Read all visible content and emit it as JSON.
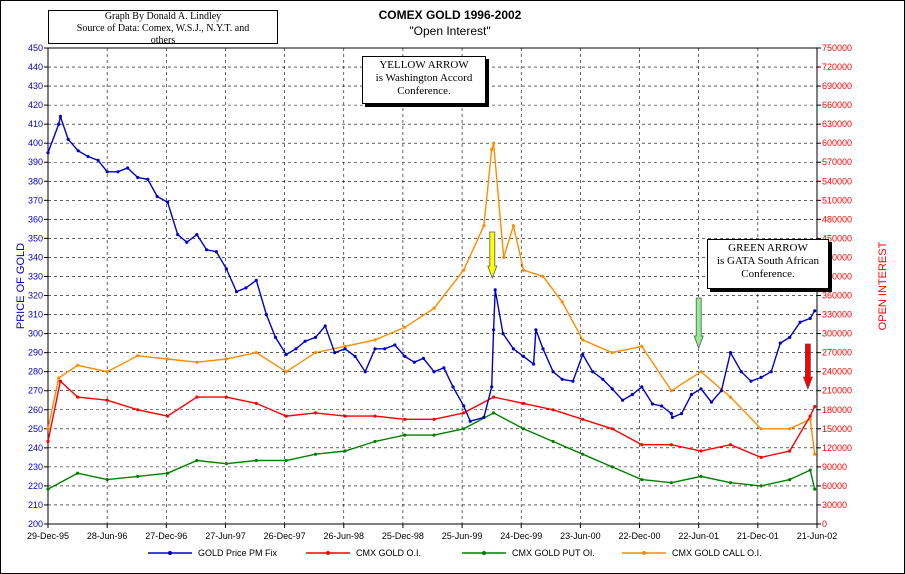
{
  "credit": {
    "line1": "Graph By Donald A. Lindley",
    "line2": "Source of Data: Comex, W.S.J., N.Y.T. and",
    "line3": "others"
  },
  "notes": {
    "yellow": {
      "line1": "YELLOW ARROW",
      "line2": "is Washington Accord",
      "line3": "Conference."
    },
    "green": {
      "line1": "GREEN ARROW",
      "line2": "is GATA South African",
      "line3": "Conference."
    }
  },
  "chart_data": {
    "type": "line",
    "title": "COMEX GOLD 1996-2002",
    "subtitle": "\"Open Interest\"",
    "ylabel_left": "PRICE OF GOLD",
    "ylabel_right": "OPEN INTEREST",
    "ylim_left": [
      200,
      450
    ],
    "ylim_right": [
      0,
      750000
    ],
    "yticks_left": [
      "200",
      "210",
      "220",
      "230",
      "240",
      "250",
      "260",
      "270",
      "280",
      "290",
      "300",
      "310",
      "320",
      "330",
      "340",
      "350",
      "360",
      "370",
      "380",
      "390",
      "400",
      "410",
      "420",
      "430",
      "440",
      "450"
    ],
    "yticks_right": [
      "0",
      "30000",
      "60000",
      "90000",
      "120000",
      "150000",
      "180000",
      "210000",
      "240000",
      "270000",
      "300000",
      "330000",
      "360000",
      "390000",
      "420000",
      "450000",
      "480000",
      "510000",
      "540000",
      "570000",
      "600000",
      "630000",
      "660000",
      "690000",
      "720000",
      "750000"
    ],
    "xticks": [
      "29-Dec-95",
      "28-Jun-96",
      "27-Dec-96",
      "27-Jun-97",
      "26-Dec-97",
      "26-Jun-98",
      "25-Dec-98",
      "25-Jun-99",
      "24-Dec-99",
      "23-Jun-00",
      "22-Dec-00",
      "22-Jun-01",
      "21-Dec-01",
      "21-Jun-02"
    ],
    "x_range": [
      "1995-12-29",
      "2002-06-21"
    ],
    "grid": true,
    "legend_position": "bottom",
    "colors": {
      "gold": "#0000cc",
      "oi": "#ff0000",
      "put": "#008000",
      "call": "#ff8c00",
      "yellow_arrow": "#ffff00",
      "green_arrow": "#90ee90",
      "red_arrow": "#ff0000"
    },
    "series": [
      {
        "name": "GOLD Price PM Fix",
        "axis": "left",
        "x": [
          "1995-12-29",
          "1996-01-31",
          "1996-02-05",
          "1996-02-29",
          "1996-03-31",
          "1996-04-30",
          "1996-05-31",
          "1996-06-28",
          "1996-07-31",
          "1996-08-30",
          "1996-09-30",
          "1996-10-31",
          "1996-11-29",
          "1996-12-31",
          "1997-01-31",
          "1997-02-28",
          "1997-03-31",
          "1997-04-30",
          "1997-05-30",
          "1997-06-30",
          "1997-07-31",
          "1997-08-29",
          "1997-09-30",
          "1997-10-31",
          "1997-11-28",
          "1997-12-31",
          "1998-01-30",
          "1998-02-27",
          "1998-03-31",
          "1998-04-30",
          "1998-05-29",
          "1998-06-30",
          "1998-07-31",
          "1998-08-31",
          "1998-09-30",
          "1998-10-30",
          "1998-11-30",
          "1998-12-31",
          "1999-01-29",
          "1999-02-26",
          "1999-03-31",
          "1999-04-30",
          "1999-05-28",
          "1999-06-30",
          "1999-07-20",
          "1999-08-31",
          "1999-09-24",
          "1999-09-30",
          "1999-10-05",
          "1999-10-29",
          "1999-11-30",
          "1999-12-31",
          "2000-01-31",
          "2000-02-07",
          "2000-02-29",
          "2000-03-31",
          "2000-04-28",
          "2000-05-31",
          "2000-06-30",
          "2000-07-31",
          "2000-08-31",
          "2000-09-29",
          "2000-10-31",
          "2000-11-30",
          "2000-12-29",
          "2001-01-31",
          "2001-02-28",
          "2001-03-30",
          "2001-04-02",
          "2001-04-30",
          "2001-05-31",
          "2001-06-29",
          "2001-07-31",
          "2001-08-31",
          "2001-09-28",
          "2001-10-31",
          "2001-11-30",
          "2001-12-31",
          "2002-01-31",
          "2002-02-28",
          "2002-03-29",
          "2002-04-30",
          "2002-05-31",
          "2002-06-14"
        ],
        "values": [
          395,
          410,
          414,
          402,
          396,
          393,
          391,
          385,
          385,
          387,
          382,
          381,
          372,
          369,
          352,
          348,
          352,
          344,
          343,
          334,
          322,
          324,
          328,
          310,
          298,
          289,
          292,
          296,
          298,
          304,
          290,
          292,
          288,
          280,
          292,
          292,
          294,
          288,
          285,
          287,
          280,
          282,
          272,
          262,
          254,
          256,
          272,
          302,
          323,
          300,
          292,
          288,
          284,
          302,
          292,
          280,
          276,
          275,
          289,
          280,
          276,
          271,
          265,
          268,
          272,
          263,
          262,
          258,
          256,
          258,
          268,
          271,
          264,
          270,
          290,
          280,
          275,
          277,
          280,
          295,
          298,
          306,
          308,
          312
        ]
      },
      {
        "name": "CMX GOLD O.I.",
        "axis": "right",
        "x": [
          "1995-12-29",
          "1996-02-05",
          "1996-03-29",
          "1996-06-28",
          "1996-09-30",
          "1996-12-31",
          "1997-03-31",
          "1997-06-30",
          "1997-09-30",
          "1997-12-31",
          "1998-03-31",
          "1998-06-30",
          "1998-09-30",
          "1998-12-31",
          "1999-03-31",
          "1999-06-30",
          "1999-09-30",
          "1999-12-31",
          "2000-03-31",
          "2000-06-30",
          "2000-09-29",
          "2000-12-29",
          "2001-03-30",
          "2001-06-29",
          "2001-09-28",
          "2001-12-31",
          "2002-03-29",
          "2002-05-31",
          "2002-06-14"
        ],
        "values": [
          130000,
          225000,
          200000,
          195000,
          180000,
          170000,
          200000,
          200000,
          190000,
          170000,
          175000,
          170000,
          170000,
          165000,
          165000,
          175000,
          200000,
          190000,
          180000,
          165000,
          150000,
          125000,
          125000,
          115000,
          125000,
          105000,
          115000,
          170000,
          185000
        ]
      },
      {
        "name": "CMX GOLD PUT OI.",
        "axis": "right",
        "x": [
          "1995-12-29",
          "1996-03-29",
          "1996-06-28",
          "1996-09-30",
          "1996-12-31",
          "1997-03-31",
          "1997-06-30",
          "1997-09-30",
          "1997-12-31",
          "1998-03-31",
          "1998-06-30",
          "1998-09-30",
          "1998-12-31",
          "1999-03-31",
          "1999-06-30",
          "1999-09-30",
          "1999-12-31",
          "2000-03-31",
          "2000-06-30",
          "2000-09-29",
          "2000-12-29",
          "2001-03-30",
          "2001-06-29",
          "2001-09-28",
          "2001-12-31",
          "2002-03-29",
          "2002-05-31",
          "2002-06-14"
        ],
        "values": [
          55000,
          80000,
          70000,
          75000,
          80000,
          100000,
          95000,
          100000,
          100000,
          110000,
          115000,
          130000,
          140000,
          140000,
          150000,
          175000,
          150000,
          130000,
          110000,
          90000,
          70000,
          65000,
          75000,
          65000,
          60000,
          70000,
          85000,
          55000
        ]
      },
      {
        "name": "CMX GOLD CALL O.I.",
        "axis": "right",
        "x": [
          "1995-12-29",
          "1996-01-31",
          "1996-03-29",
          "1996-06-28",
          "1996-09-30",
          "1996-12-31",
          "1997-03-31",
          "1997-06-30",
          "1997-09-30",
          "1997-12-31",
          "1998-03-31",
          "1998-06-30",
          "1998-09-30",
          "1998-12-31",
          "1999-03-31",
          "1999-06-30",
          "1999-08-31",
          "1999-09-24",
          "1999-09-30",
          "1999-10-31",
          "1999-11-30",
          "1999-12-31",
          "2000-02-29",
          "2000-04-28",
          "2000-06-30",
          "2000-09-29",
          "2000-12-29",
          "2001-03-30",
          "2001-06-29",
          "2001-09-28",
          "2001-12-31",
          "2002-03-29",
          "2002-05-31",
          "2002-06-14"
        ],
        "values": [
          150000,
          230000,
          250000,
          240000,
          265000,
          260000,
          255000,
          260000,
          270000,
          240000,
          270000,
          280000,
          290000,
          310000,
          340000,
          400000,
          470000,
          590000,
          600000,
          420000,
          470000,
          400000,
          390000,
          350000,
          290000,
          270000,
          280000,
          210000,
          240000,
          200000,
          150000,
          150000,
          165000,
          110000
        ]
      }
    ]
  }
}
